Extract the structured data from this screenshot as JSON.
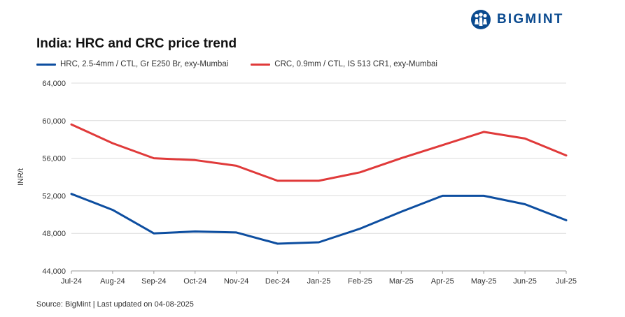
{
  "brand": {
    "name": "BIGMINT",
    "color": "#0a4a8f",
    "logo_icon": "bigmint-people-icon"
  },
  "source_text": "Source: BigMint | Last updated on 04-08-2025",
  "chart_data": {
    "type": "line",
    "title": "India: HRC and CRC price trend",
    "xlabel": "",
    "ylabel": "INR/t",
    "categories": [
      "Jul-24",
      "Aug-24",
      "Sep-24",
      "Oct-24",
      "Nov-24",
      "Dec-24",
      "Jan-25",
      "Feb-25",
      "Mar-25",
      "Apr-25",
      "May-25",
      "Jun-25",
      "Jul-25"
    ],
    "ylim": [
      44000,
      64000
    ],
    "yticks": [
      44000,
      48000,
      52000,
      56000,
      60000,
      64000
    ],
    "ytick_labels": [
      "44,000",
      "48,000",
      "52,000",
      "56,000",
      "60,000",
      "64,000"
    ],
    "grid": true,
    "legend_position": "top-left",
    "series": [
      {
        "name": "HRC, 2.5-4mm / CTL, Gr E250 Br, exy-Mumbai",
        "color": "#0d4ea0",
        "values": [
          52200,
          50500,
          48000,
          48200,
          48100,
          46900,
          47050,
          48500,
          50300,
          52000,
          52000,
          51100,
          49400
        ]
      },
      {
        "name": "CRC, 0.9mm / CTL, IS 513 CR1, exy-Mumbai",
        "color": "#e03a3a",
        "values": [
          59600,
          57600,
          56000,
          55800,
          55200,
          53600,
          53600,
          54500,
          56000,
          57400,
          58800,
          58100,
          56300
        ]
      }
    ]
  }
}
